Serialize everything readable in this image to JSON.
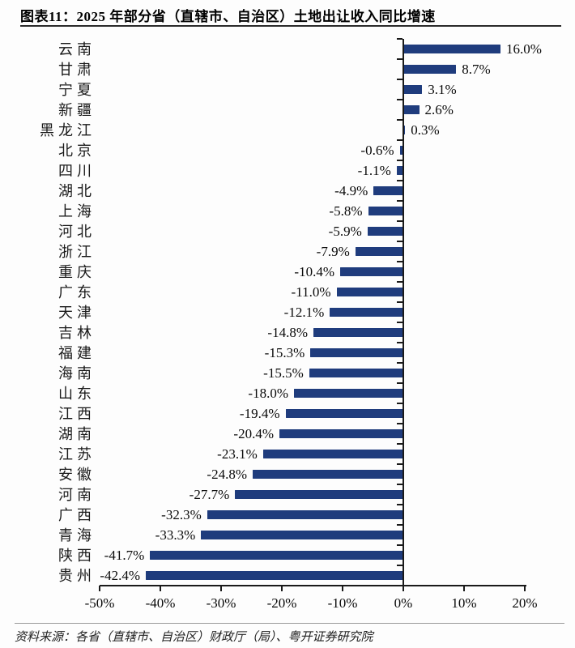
{
  "figure": {
    "title": "图表11：2025 年部分省（直辖市、自治区）土地出让收入同比增速",
    "source": "资料来源：各省（直辖市、自治区）财政厅（局）、粤开证券研究院"
  },
  "chart_data": {
    "type": "bar",
    "orientation": "horizontal",
    "title": "2025 年部分省（直辖市、自治区）土地出让收入同比增速",
    "categories": [
      "云南",
      "甘肃",
      "宁夏",
      "新疆",
      "黑龙江",
      "北京",
      "四川",
      "湖北",
      "上海",
      "河北",
      "浙江",
      "重庆",
      "广东",
      "天津",
      "吉林",
      "福建",
      "海南",
      "山东",
      "江西",
      "湖南",
      "江苏",
      "安徽",
      "河南",
      "广西",
      "青海",
      "陕西",
      "贵州"
    ],
    "values": [
      16.0,
      8.7,
      3.1,
      2.6,
      0.3,
      -0.6,
      -1.1,
      -4.9,
      -5.8,
      -5.9,
      -7.9,
      -10.4,
      -11.0,
      -12.1,
      -14.8,
      -15.3,
      -15.5,
      -18.0,
      -19.4,
      -20.4,
      -23.1,
      -24.8,
      -27.7,
      -32.3,
      -33.3,
      -41.7,
      -42.4
    ],
    "value_labels": [
      "16.0%",
      "8.7%",
      "3.1%",
      "2.6%",
      "0.3%",
      "-0.6%",
      "-1.1%",
      "-4.9%",
      "-5.8%",
      "-5.9%",
      "-7.9%",
      "-10.4%",
      "-11.0%",
      "-12.1%",
      "-14.8%",
      "-15.3%",
      "-15.5%",
      "-18.0%",
      "-19.4%",
      "-20.4%",
      "-23.1%",
      "-24.8%",
      "-27.7%",
      "-32.3%",
      "-33.3%",
      "-41.7%",
      "-42.4%"
    ],
    "xlabel": "",
    "ylabel": "",
    "xlim": [
      -50,
      20
    ],
    "x_ticks": [
      -50,
      -40,
      -30,
      -20,
      -10,
      0,
      10,
      20
    ],
    "x_tick_labels": [
      "-50%",
      "-40%",
      "-30%",
      "-20%",
      "-10%",
      "0%",
      "10%",
      "20%"
    ],
    "grid": false,
    "legend": "none",
    "bar_color": "#1F3C7D",
    "axis_color": "#1a1a1a",
    "value_label_position": "outside-end"
  }
}
